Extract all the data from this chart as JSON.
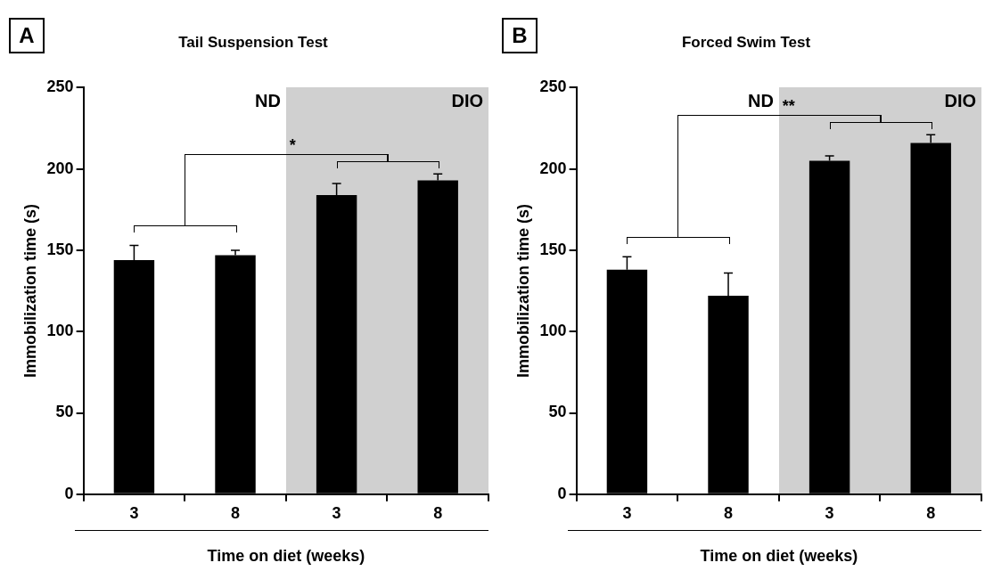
{
  "chart_data": [
    {
      "type": "bar",
      "title": "Tail Suspension Test",
      "xlabel": "Time on diet (weeks)",
      "ylabel": "Immobilization time (s)",
      "categories": [
        "3",
        "8",
        "3",
        "8"
      ],
      "values": [
        144,
        147,
        184,
        193
      ],
      "errors": [
        9,
        3,
        7,
        4
      ],
      "color": "#000000",
      "ylim": [
        0,
        250
      ],
      "yticks": [
        0,
        50,
        100,
        150,
        200,
        250
      ],
      "grid": false,
      "annotations": [
        "A",
        "ND",
        "DIO",
        "*"
      ]
    },
    {
      "type": "bar",
      "title": "Forced Swim Test",
      "xlabel": "Time on diet (weeks)",
      "ylabel": "Immobilization time (s)",
      "categories": [
        "3",
        "8",
        "3",
        "8"
      ],
      "values": [
        138,
        122,
        205,
        216
      ],
      "errors": [
        8,
        14,
        3,
        5
      ],
      "color": "#000000",
      "ylim": [
        0,
        250
      ],
      "yticks": [
        0,
        50,
        100,
        150,
        200,
        250
      ],
      "grid": false,
      "annotations": [
        "B",
        "ND",
        "DIO",
        "**"
      ]
    }
  ]
}
